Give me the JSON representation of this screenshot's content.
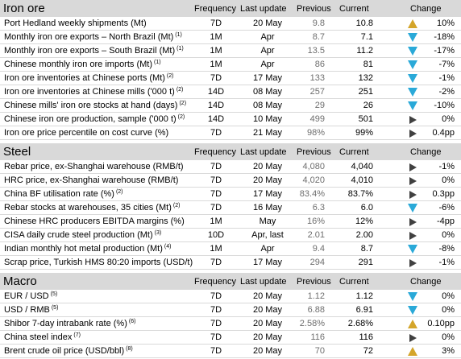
{
  "columns": {
    "frequency": "Frequency",
    "last_update": "Last update",
    "previous": "Previous",
    "current": "Current",
    "change": "Change"
  },
  "sections": [
    {
      "title": "Iron ore",
      "rows": [
        {
          "name": "Port Hedland weekly shipments (Mt)",
          "note": "",
          "frequency": "7D",
          "last_update": "20 May",
          "previous": "9.8",
          "current": "10.8",
          "direction": "up",
          "change": "10%"
        },
        {
          "name": "Monthly iron ore exports – North Brazil (Mt)",
          "note": "(1)",
          "frequency": "1M",
          "last_update": "Apr",
          "previous": "8.7",
          "current": "7.1",
          "direction": "down",
          "change": "-18%"
        },
        {
          "name": "Monthly iron ore exports – South Brazil (Mt)",
          "note": "(1)",
          "frequency": "1M",
          "last_update": "Apr",
          "previous": "13.5",
          "current": "11.2",
          "direction": "down",
          "change": "-17%"
        },
        {
          "name": "Chinese monthly iron ore imports (Mt)",
          "note": "(1)",
          "frequency": "1M",
          "last_update": "Apr",
          "previous": "86",
          "current": "81",
          "direction": "down",
          "change": "-7%"
        },
        {
          "name": "Iron ore inventories at Chinese ports (Mt)",
          "note": "(2)",
          "frequency": "7D",
          "last_update": "17 May",
          "previous": "133",
          "current": "132",
          "direction": "down",
          "change": "-1%"
        },
        {
          "name": "Iron ore inventories at Chinese mills ('000 t)",
          "note": "(2)",
          "frequency": "14D",
          "last_update": "08 May",
          "previous": "257",
          "current": "251",
          "direction": "down",
          "change": "-2%"
        },
        {
          "name": "Chinese mills' iron ore stocks at hand (days)",
          "note": "(2)",
          "frequency": "14D",
          "last_update": "08 May",
          "previous": "29",
          "current": "26",
          "direction": "down",
          "change": "-10%"
        },
        {
          "name": "Chinese iron ore production, sample ('000 t)",
          "note": "(2)",
          "frequency": "14D",
          "last_update": "10 May",
          "previous": "499",
          "current": "501",
          "direction": "flat",
          "change": "0%"
        },
        {
          "name": "Iron ore price percentile on cost curve (%)",
          "note": "",
          "frequency": "7D",
          "last_update": "21 May",
          "previous": "98%",
          "current": "99%",
          "direction": "flat",
          "change": "0.4pp"
        }
      ]
    },
    {
      "title": "Steel",
      "rows": [
        {
          "name": "Rebar price, ex-Shanghai warehouse (RMB/t)",
          "note": "",
          "frequency": "7D",
          "last_update": "20 May",
          "previous": "4,080",
          "current": "4,040",
          "direction": "flat",
          "change": "-1%"
        },
        {
          "name": "HRC price, ex-Shanghai warehouse (RMB/t)",
          "note": "",
          "frequency": "7D",
          "last_update": "20 May",
          "previous": "4,020",
          "current": "4,010",
          "direction": "flat",
          "change": "0%"
        },
        {
          "name": "China BF utilisation rate (%)",
          "note": "(2)",
          "frequency": "7D",
          "last_update": "17 May",
          "previous": "83.4%",
          "current": "83.7%",
          "direction": "flat",
          "change": "0.3pp"
        },
        {
          "name": "Rebar stocks at warehouses, 35 cities (Mt)",
          "note": "(2)",
          "frequency": "7D",
          "last_update": "16 May",
          "previous": "6.3",
          "current": "6.0",
          "direction": "down",
          "change": "-6%"
        },
        {
          "name": "Chinese HRC producers EBITDA margins (%)",
          "note": "",
          "frequency": "1M",
          "last_update": "May",
          "previous": "16%",
          "current": "12%",
          "direction": "flat",
          "change": "-4pp"
        },
        {
          "name": "CISA daily crude steel production (Mt)",
          "note": "(3)",
          "frequency": "10D",
          "last_update": "Apr, last",
          "previous": "2.01",
          "current": "2.00",
          "direction": "flat",
          "change": "0%"
        },
        {
          "name": "Indian monthly hot metal production (Mt)",
          "note": "(4)",
          "frequency": "1M",
          "last_update": "Apr",
          "previous": "9.4",
          "current": "8.7",
          "direction": "down",
          "change": "-8%"
        },
        {
          "name": "Scrap price, Turkish HMS 80:20 imports (USD/t)",
          "note": "",
          "frequency": "7D",
          "last_update": "17 May",
          "previous": "294",
          "current": "291",
          "direction": "flat",
          "change": "-1%"
        }
      ]
    },
    {
      "title": "Macro",
      "rows": [
        {
          "name": "EUR / USD",
          "note": "(5)",
          "frequency": "7D",
          "last_update": "20 May",
          "previous": "1.12",
          "current": "1.12",
          "direction": "down",
          "change": "0%"
        },
        {
          "name": "USD / RMB",
          "note": "(5)",
          "frequency": "7D",
          "last_update": "20 May",
          "previous": "6.88",
          "current": "6.91",
          "direction": "down",
          "change": "0%"
        },
        {
          "name": "Shibor 7-day intrabank rate (%)",
          "note": "(6)",
          "frequency": "7D",
          "last_update": "20 May",
          "previous": "2.58%",
          "current": "2.68%",
          "direction": "up",
          "change": "0.10pp"
        },
        {
          "name": "China steel index",
          "note": "(7)",
          "frequency": "7D",
          "last_update": "20 May",
          "previous": "116",
          "current": "116",
          "direction": "flat",
          "change": "0%"
        },
        {
          "name": "Brent crude oil price (USD/bbl)",
          "note": "(8)",
          "frequency": "7D",
          "last_update": "20 May",
          "previous": "70",
          "current": "72",
          "direction": "up",
          "change": "3%"
        }
      ]
    }
  ],
  "colors": {
    "header_bg": "#d9d9d9",
    "up": "#d4a52a",
    "down": "#2aa9d8",
    "flat": "#404040",
    "previous_text": "#6e6e6e"
  }
}
